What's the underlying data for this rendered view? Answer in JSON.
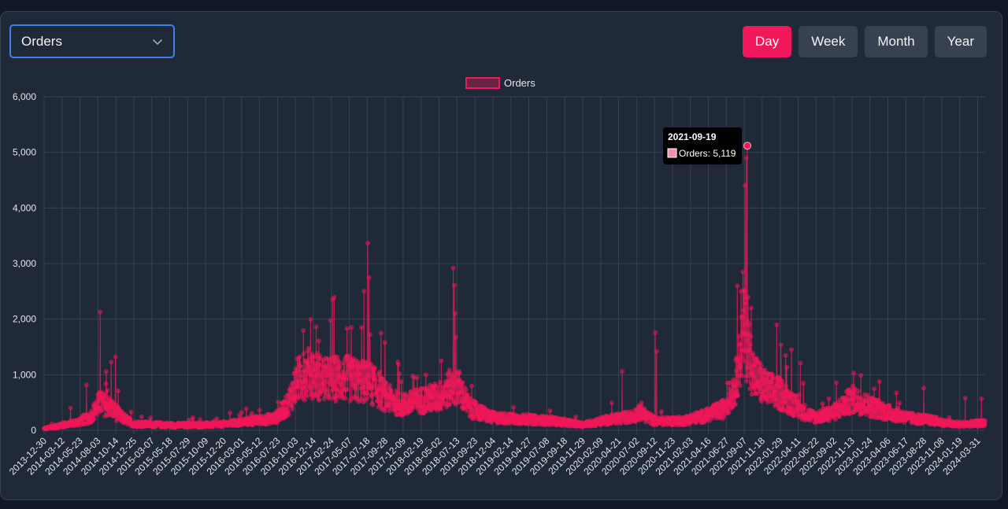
{
  "controls": {
    "metric_select": {
      "value": "Orders"
    },
    "range_buttons": [
      {
        "label": "Day",
        "active": true
      },
      {
        "label": "Week",
        "active": false
      },
      {
        "label": "Month",
        "active": false
      },
      {
        "label": "Year",
        "active": false
      }
    ]
  },
  "tooltip": {
    "date": "2021-09-19",
    "text": "Orders: 5,119"
  },
  "icons": {
    "select_toggle": "chevron-down-icon"
  },
  "colors": {
    "accent": "#f0185a",
    "focus": "#3b82f6",
    "background": "#1f2937",
    "page": "#111827",
    "button": "#374151"
  },
  "chart_data": {
    "type": "line",
    "series": [
      {
        "name": "Orders",
        "color": "#f0185a"
      }
    ],
    "legend_position": "top-center",
    "grid": true,
    "y_ticks": [
      "0",
      "1,000",
      "2,000",
      "3,000",
      "4,000",
      "5,000",
      "6,000"
    ],
    "ylim": [
      0,
      6000
    ],
    "x_range": [
      "2013-12-30",
      "2024-04-30"
    ],
    "x_ticks": [
      "2013-12-30",
      "2014-03-12",
      "2014-05-23",
      "2014-08-03",
      "2014-10-14",
      "2014-12-25",
      "2015-03-07",
      "2015-05-18",
      "2015-07-29",
      "2015-10-09",
      "2015-12-20",
      "2016-03-01",
      "2016-05-12",
      "2016-07-23",
      "2016-10-03",
      "2016-12-14",
      "2017-02-24",
      "2017-05-07",
      "2017-07-18",
      "2017-09-28",
      "2017-12-09",
      "2018-02-19",
      "2018-05-02",
      "2018-07-13",
      "2018-09-23",
      "2018-12-04",
      "2019-02-14",
      "2019-04-27",
      "2019-07-08",
      "2019-09-18",
      "2019-11-29",
      "2020-02-09",
      "2020-04-21",
      "2020-07-02",
      "2020-09-12",
      "2020-11-23",
      "2021-02-03",
      "2021-04-16",
      "2021-06-27",
      "2021-09-07",
      "2021-11-18",
      "2022-01-29",
      "2022-04-11",
      "2022-06-22",
      "2022-09-02",
      "2022-11-13",
      "2023-01-24",
      "2023-04-06",
      "2023-06-17",
      "2023-08-28",
      "2023-11-08",
      "2024-01-19",
      "2024-03-31"
    ],
    "baseline": [
      [
        "2013-12-30",
        30
      ],
      [
        "2014-03-01",
        80
      ],
      [
        "2014-05-01",
        130
      ],
      [
        "2014-07-01",
        220
      ],
      [
        "2014-08-10",
        500
      ],
      [
        "2014-09-20",
        420
      ],
      [
        "2014-11-01",
        250
      ],
      [
        "2014-12-20",
        120
      ],
      [
        "2015-06-01",
        90
      ],
      [
        "2015-12-01",
        100
      ],
      [
        "2016-04-01",
        160
      ],
      [
        "2016-07-15",
        220
      ],
      [
        "2016-09-01",
        450
      ],
      [
        "2016-10-10",
        900
      ],
      [
        "2016-12-01",
        1050
      ],
      [
        "2017-02-01",
        900
      ],
      [
        "2017-04-01",
        950
      ],
      [
        "2017-06-01",
        900
      ],
      [
        "2017-08-01",
        850
      ],
      [
        "2017-10-01",
        600
      ],
      [
        "2017-12-01",
        450
      ],
      [
        "2018-03-01",
        550
      ],
      [
        "2018-05-01",
        600
      ],
      [
        "2018-07-10",
        850
      ],
      [
        "2018-09-01",
        400
      ],
      [
        "2018-12-01",
        230
      ],
      [
        "2019-04-01",
        200
      ],
      [
        "2019-08-01",
        170
      ],
      [
        "2019-12-01",
        100
      ],
      [
        "2020-03-01",
        180
      ],
      [
        "2020-06-15",
        250
      ],
      [
        "2020-07-15",
        320
      ],
      [
        "2020-09-15",
        160
      ],
      [
        "2021-01-01",
        170
      ],
      [
        "2021-04-01",
        260
      ],
      [
        "2021-06-15",
        380
      ],
      [
        "2021-08-01",
        800
      ],
      [
        "2021-09-07",
        1800
      ],
      [
        "2021-10-15",
        1000
      ],
      [
        "2021-12-01",
        750
      ],
      [
        "2022-02-01",
        650
      ],
      [
        "2022-04-15",
        380
      ],
      [
        "2022-06-15",
        230
      ],
      [
        "2022-09-01",
        320
      ],
      [
        "2022-11-15",
        560
      ],
      [
        "2023-01-15",
        450
      ],
      [
        "2023-04-01",
        330
      ],
      [
        "2023-07-01",
        220
      ],
      [
        "2023-10-01",
        180
      ],
      [
        "2024-01-01",
        100
      ],
      [
        "2024-04-30",
        130
      ]
    ],
    "spikes": [
      [
        "2014-04-15",
        400
      ],
      [
        "2014-06-18",
        820
      ],
      [
        "2014-08-12",
        2130
      ],
      [
        "2014-09-10",
        720
      ],
      [
        "2014-09-25",
        1230
      ],
      [
        "2014-10-12",
        1320
      ],
      [
        "2016-03-20",
        390
      ],
      [
        "2016-11-05",
        1380
      ],
      [
        "2016-12-25",
        1860
      ],
      [
        "2017-01-05",
        1610
      ],
      [
        "2017-02-20",
        1980
      ],
      [
        "2017-03-01",
        2350
      ],
      [
        "2017-05-15",
        1850
      ],
      [
        "2017-06-25",
        1850
      ],
      [
        "2017-07-05",
        2500
      ],
      [
        "2017-07-20",
        3370
      ],
      [
        "2017-07-25",
        2750
      ],
      [
        "2017-09-05",
        1050
      ],
      [
        "2018-03-10",
        1000
      ],
      [
        "2018-06-28",
        2920
      ],
      [
        "2018-07-02",
        2610
      ],
      [
        "2018-07-05",
        2100
      ],
      [
        "2018-07-08",
        1680
      ],
      [
        "2018-09-10",
        800
      ],
      [
        "2020-05-05",
        1060
      ],
      [
        "2020-09-15",
        1760
      ],
      [
        "2020-09-20",
        1420
      ],
      [
        "2021-08-10",
        2600
      ],
      [
        "2021-08-25",
        2500
      ],
      [
        "2021-09-02",
        2850
      ],
      [
        "2021-09-10",
        4410
      ],
      [
        "2021-09-15",
        4900
      ],
      [
        "2021-09-19",
        5119
      ],
      [
        "2021-10-05",
        2200
      ],
      [
        "2022-01-15",
        1900
      ],
      [
        "2022-02-01",
        1540
      ],
      [
        "2022-02-20",
        1350
      ],
      [
        "2022-03-15",
        1450
      ],
      [
        "2022-04-20",
        1210
      ],
      [
        "2022-11-20",
        1030
      ],
      [
        "2023-08-28",
        760
      ],
      [
        "2024-02-10",
        580
      ],
      [
        "2024-04-15",
        570
      ]
    ]
  }
}
